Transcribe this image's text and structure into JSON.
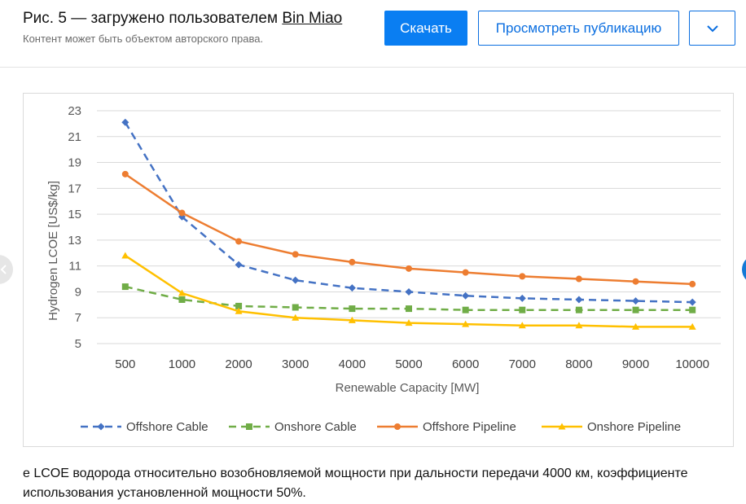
{
  "header": {
    "title_prefix": "Рис. 5 — загружено пользователем",
    "author": "Bin Miao",
    "subtitle": "Контент может быть объектом авторского права.",
    "download_label": "Скачать",
    "view_publication_label": "Просмотреть публикацию",
    "dropdown_icon": "chevron-down-icon"
  },
  "caption": "е LCOE водорода относительно возобновляемой мощности при дальности передачи 4000 км, коэффициенте использования установленной мощности 50%.",
  "colors": {
    "accent": "#0a7ef2",
    "offshore_cable": "#4472c4",
    "onshore_cable": "#70ad47",
    "offshore_pipeline": "#ed7d31",
    "onshore_pipeline": "#ffc000"
  },
  "chart_data": {
    "type": "line",
    "title": "",
    "xlabel": "Renewable Capacity [MW]",
    "ylabel": "Hydrogen LCOE [US$/kg]",
    "categories": [
      "500",
      "1000",
      "2000",
      "3000",
      "4000",
      "5000",
      "6000",
      "7000",
      "8000",
      "9000",
      "10000"
    ],
    "ylim": [
      5,
      23
    ],
    "yticks": [
      "5",
      "7",
      "9",
      "11",
      "13",
      "15",
      "17",
      "19",
      "21",
      "23"
    ],
    "grid": true,
    "legend_position": "bottom",
    "series": [
      {
        "name": "Offshore Cable",
        "style": "dashed",
        "marker": "diamond",
        "color": "#4472c4",
        "values": [
          22.1,
          14.8,
          11.1,
          9.9,
          9.3,
          9.0,
          8.7,
          8.5,
          8.4,
          8.3,
          8.2
        ]
      },
      {
        "name": "Onshore Cable",
        "style": "dashed",
        "marker": "square",
        "color": "#70ad47",
        "values": [
          9.4,
          8.4,
          7.9,
          7.8,
          7.7,
          7.7,
          7.6,
          7.6,
          7.6,
          7.6,
          7.6
        ]
      },
      {
        "name": "Offshore Pipeline",
        "style": "solid",
        "marker": "circle",
        "color": "#ed7d31",
        "values": [
          18.1,
          15.1,
          12.9,
          11.9,
          11.3,
          10.8,
          10.5,
          10.2,
          10.0,
          9.8,
          9.6
        ]
      },
      {
        "name": "Onshore Pipeline",
        "style": "solid",
        "marker": "triangle",
        "color": "#ffc000",
        "values": [
          11.8,
          8.9,
          7.5,
          7.0,
          6.8,
          6.6,
          6.5,
          6.4,
          6.4,
          6.3,
          6.3
        ]
      }
    ]
  }
}
